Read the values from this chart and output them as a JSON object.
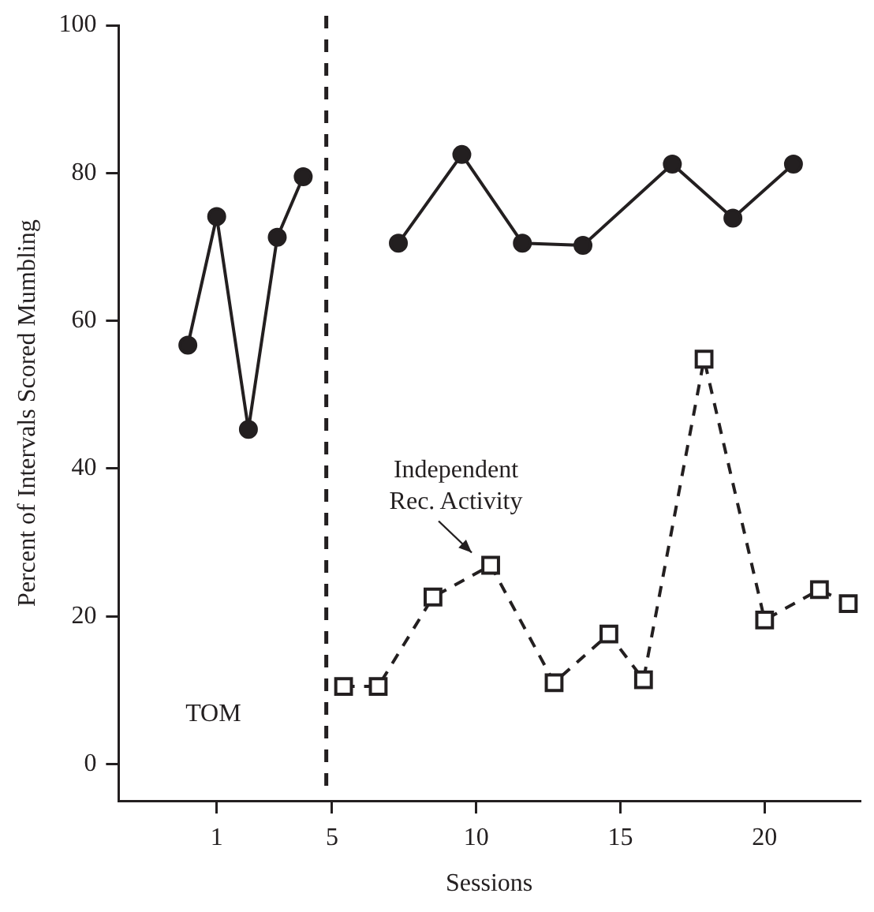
{
  "chart_data": {
    "type": "line",
    "xlabel": "Sessions",
    "ylabel": "Percent of Intervals Scored Mumbling",
    "xlim": [
      -2.4,
      23.3
    ],
    "xticks": [
      1,
      5,
      10,
      15,
      20
    ],
    "ylim": [
      -5,
      100
    ],
    "yticks": [
      0,
      20,
      40,
      60,
      80,
      100
    ],
    "grid": false,
    "legend": false,
    "series": [
      {
        "color": "#231f20",
        "marker": "circle",
        "line_style": "solid",
        "x": [
          0,
          1,
          2.1,
          3.1,
          4
        ],
        "values": [
          56.7,
          74.1,
          45.3,
          71.3,
          79.5
        ]
      },
      {
        "color": "#231f20",
        "marker": "circle",
        "line_style": "solid",
        "x": [
          7.3,
          9.5,
          11.6,
          13.7,
          16.8,
          18.9,
          21
        ],
        "values": [
          70.5,
          82.5,
          70.5,
          70.2,
          81.2,
          73.9,
          81.2
        ]
      },
      {
        "color": "#231f20",
        "marker": "square",
        "line_style": "dashed",
        "x": [
          5.4,
          6.6,
          8.5,
          10.5,
          12.7,
          14.6,
          15.8,
          17.9,
          20,
          21.9,
          22.9
        ],
        "values": [
          10.5,
          10.5,
          22.6,
          26.9,
          11,
          17.6,
          11.4,
          54.8,
          19.5,
          23.6,
          21.7
        ]
      }
    ],
    "ref_lines": [
      {
        "axis": "x",
        "value": 4.8,
        "color": "#231f20",
        "line_style": "dashed"
      }
    ],
    "annotations": [
      {
        "text": "Independent\nRec. Activity",
        "x": 10.5,
        "y": 26.9
      },
      "TOM"
    ]
  }
}
